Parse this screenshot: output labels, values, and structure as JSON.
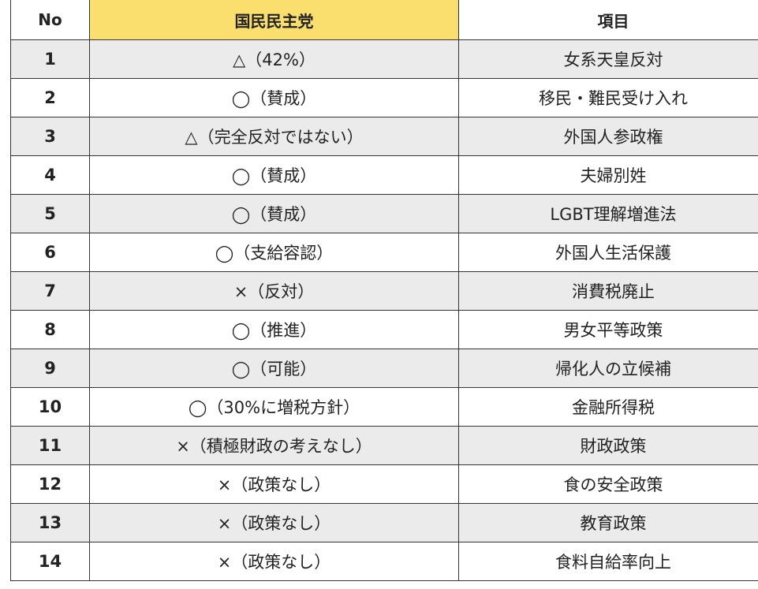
{
  "header": {
    "no": "No",
    "party": "国民民主党",
    "item": "項目"
  },
  "colors": {
    "header_highlight": "#fbdf6e",
    "stripe": "#ebebeb"
  },
  "rows": [
    {
      "no": "1",
      "stance": "△（42%）",
      "item": "女系天皇反対"
    },
    {
      "no": "2",
      "stance": "◯（賛成）",
      "item": "移民・難民受け入れ"
    },
    {
      "no": "3",
      "stance": "△（完全反対ではない）",
      "item": "外国人参政権"
    },
    {
      "no": "4",
      "stance": "◯（賛成）",
      "item": "夫婦別姓"
    },
    {
      "no": "5",
      "stance": "◯（賛成）",
      "item": "LGBT理解増進法"
    },
    {
      "no": "6",
      "stance": "◯（支給容認）",
      "item": "外国人生活保護"
    },
    {
      "no": "7",
      "stance": "×（反対）",
      "item": "消費税廃止"
    },
    {
      "no": "8",
      "stance": "◯（推進）",
      "item": "男女平等政策"
    },
    {
      "no": "9",
      "stance": "◯（可能）",
      "item": "帰化人の立候補"
    },
    {
      "no": "10",
      "stance": "◯（30%に増税方針）",
      "item": "金融所得税"
    },
    {
      "no": "11",
      "stance": "×（積極財政の考えなし）",
      "item": "財政政策"
    },
    {
      "no": "12",
      "stance": "×（政策なし）",
      "item": "食の安全政策"
    },
    {
      "no": "13",
      "stance": "×（政策なし）",
      "item": "教育政策"
    },
    {
      "no": "14",
      "stance": "×（政策なし）",
      "item": "食料自給率向上"
    }
  ]
}
